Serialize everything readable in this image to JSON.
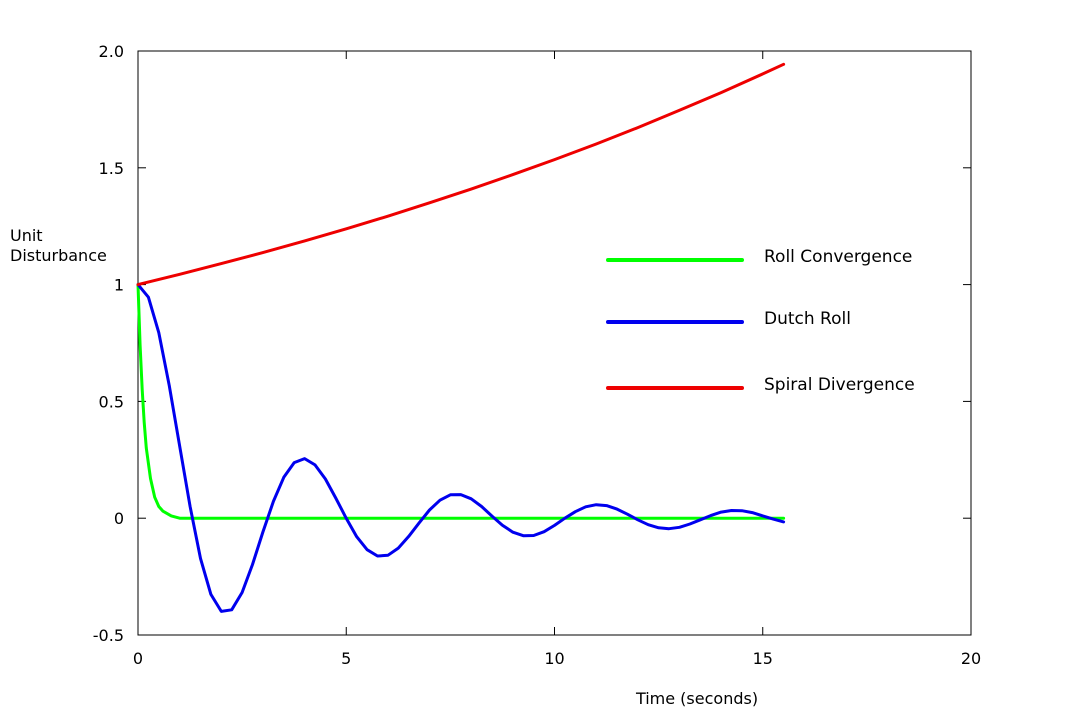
{
  "chart_data": {
    "type": "line",
    "title": "",
    "xlabel": "Time (seconds)",
    "ylabel_lines": [
      "Unit",
      "Disturbance"
    ],
    "xlim": [
      0,
      20
    ],
    "ylim": [
      -0.5,
      2.0
    ],
    "x_ticks": [
      {
        "value": 0,
        "label": "0"
      },
      {
        "value": 5,
        "label": "5"
      },
      {
        "value": 10,
        "label": "10"
      },
      {
        "value": 15,
        "label": "15"
      },
      {
        "value": 20,
        "label": "20"
      }
    ],
    "y_ticks": [
      {
        "value": -0.5,
        "label": "-0.5"
      },
      {
        "value": 0,
        "label": "0"
      },
      {
        "value": 0.5,
        "label": "0.5"
      },
      {
        "value": 1,
        "label": "1"
      },
      {
        "value": 1.5,
        "label": "1.5"
      },
      {
        "value": 2.0,
        "label": "2.0"
      }
    ],
    "grid": false,
    "legend_position": "center-right",
    "series": [
      {
        "name": "Roll Convergence",
        "color": "#00ff00",
        "x": [
          0,
          0.05,
          0.1,
          0.15,
          0.2,
          0.3,
          0.4,
          0.5,
          0.6,
          0.8,
          1.0,
          1.5,
          2,
          4,
          6,
          8,
          10,
          12,
          14,
          15.5
        ],
        "y": [
          1.0,
          0.74,
          0.55,
          0.41,
          0.3,
          0.17,
          0.09,
          0.05,
          0.03,
          0.01,
          0.0,
          0.0,
          0.0,
          0.0,
          0.0,
          0.0,
          0.0,
          0.0,
          0.0,
          0.0
        ]
      },
      {
        "name": "Dutch Roll",
        "color": "#0000ee",
        "x": [
          0,
          0.25,
          0.5,
          0.75,
          1.0,
          1.25,
          1.5,
          1.75,
          2.0,
          2.25,
          2.5,
          2.75,
          3.0,
          3.25,
          3.5,
          3.75,
          4.0,
          4.25,
          4.5,
          4.75,
          5.0,
          5.25,
          5.5,
          5.75,
          6.0,
          6.25,
          6.5,
          6.75,
          7.0,
          7.25,
          7.5,
          7.75,
          8.0,
          8.25,
          8.5,
          8.75,
          9.0,
          9.25,
          9.5,
          9.75,
          10.0,
          10.25,
          10.5,
          10.75,
          11.0,
          11.25,
          11.5,
          11.75,
          12.0,
          12.25,
          12.5,
          12.75,
          13.0,
          13.25,
          13.5,
          13.75,
          14.0,
          14.25,
          14.5,
          14.75,
          15.0,
          15.25,
          15.5
        ],
        "y": [
          1.0,
          0.946,
          0.794,
          0.569,
          0.308,
          0.05,
          -0.172,
          -0.326,
          -0.399,
          -0.392,
          -0.318,
          -0.198,
          -0.059,
          0.072,
          0.175,
          0.238,
          0.255,
          0.228,
          0.168,
          0.086,
          -0.001,
          -0.079,
          -0.135,
          -0.162,
          -0.159,
          -0.128,
          -0.078,
          -0.02,
          0.035,
          0.077,
          0.1,
          0.101,
          0.083,
          0.05,
          0.009,
          -0.03,
          -0.06,
          -0.075,
          -0.074,
          -0.058,
          -0.031,
          0.0,
          0.028,
          0.049,
          0.058,
          0.054,
          0.039,
          0.017,
          -0.007,
          -0.028,
          -0.041,
          -0.045,
          -0.039,
          -0.025,
          -0.007,
          0.011,
          0.026,
          0.033,
          0.032,
          0.024,
          0.01,
          -0.004,
          -0.016
        ]
      },
      {
        "name": "Spiral Divergence",
        "color": "#ee0000",
        "x": [
          0,
          1,
          2,
          3,
          4,
          5,
          6,
          7,
          8,
          9,
          10,
          11,
          12,
          13,
          14,
          15,
          15.5
        ],
        "y": [
          1.0,
          1.044,
          1.09,
          1.137,
          1.187,
          1.239,
          1.293,
          1.35,
          1.409,
          1.471,
          1.535,
          1.602,
          1.672,
          1.746,
          1.822,
          1.902,
          1.943
        ]
      }
    ]
  }
}
